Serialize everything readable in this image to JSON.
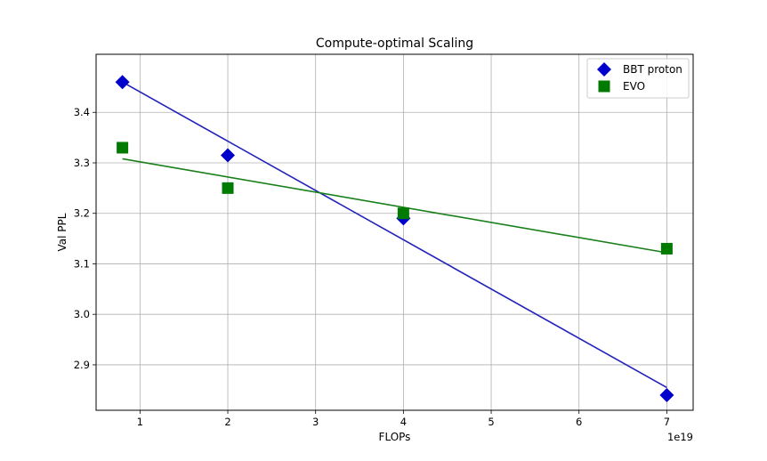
{
  "chart_data": {
    "type": "scatter",
    "title": "Compute-optimal Scaling",
    "xlabel": "FLOPs",
    "ylabel": "Val PPL",
    "x_offset_label": "1e19",
    "xlim": [
      0.5,
      7.3
    ],
    "ylim": [
      2.81,
      3.515
    ],
    "x_ticks": [
      1,
      2,
      3,
      4,
      5,
      6,
      7
    ],
    "x_tick_labels": [
      "1",
      "2",
      "3",
      "4",
      "5",
      "6",
      "7"
    ],
    "y_ticks": [
      2.9,
      3.0,
      3.1,
      3.2,
      3.3,
      3.4
    ],
    "y_tick_labels": [
      "2.9",
      "3.0",
      "3.1",
      "3.2",
      "3.3",
      "3.4"
    ],
    "grid": true,
    "legend_position": "top-right",
    "series": [
      {
        "name": "BBT proton",
        "marker": "diamond",
        "color": "#0000cc",
        "fit_color": "#2222bb",
        "x": [
          0.8,
          2.0,
          4.0,
          7.0
        ],
        "y": [
          3.46,
          3.315,
          3.19,
          2.84
        ],
        "fit": {
          "x": [
            0.8,
            7.0
          ],
          "y": [
            3.46,
            2.855
          ]
        }
      },
      {
        "name": "EVO",
        "marker": "square",
        "color": "#007a00",
        "fit_color": "#1a7f1a",
        "x": [
          0.8,
          2.0,
          4.0,
          7.0
        ],
        "y": [
          3.33,
          3.25,
          3.2,
          3.13
        ],
        "fit": {
          "x": [
            0.8,
            7.0
          ],
          "y": [
            3.308,
            3.122
          ]
        }
      }
    ]
  }
}
